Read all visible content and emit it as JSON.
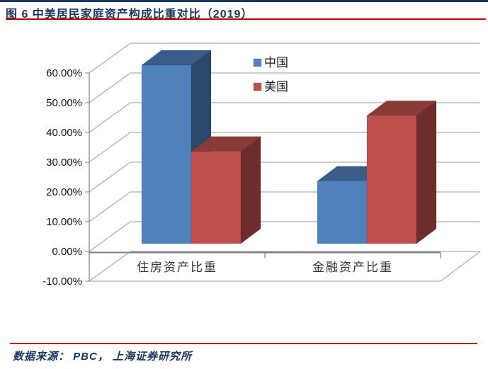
{
  "header": {
    "title": "图 6 中美居民家庭资产构成比重对比（2019）",
    "accent_color": "#17365D",
    "rule_color": "#C00000"
  },
  "footer": {
    "source": "数据来源： PBC， 上海证券研究所"
  },
  "chart_data": {
    "type": "bar",
    "variant": "3d-clustered-column",
    "title": "中美居民家庭资产构成比重对比（2019）",
    "categories": [
      "住房资产比重",
      "金融资产比重"
    ],
    "category_keys": [
      "housing",
      "financial"
    ],
    "series": [
      {
        "name": "中国",
        "key": "china",
        "color": "#4F81BD",
        "values": [
          60,
          21
        ]
      },
      {
        "name": "美国",
        "key": "usa",
        "color": "#C0504D",
        "values": [
          31,
          43
        ]
      }
    ],
    "unit": "%",
    "ylim": [
      -10,
      60
    ],
    "ytick_step": 10,
    "ytick_labels": [
      "60.00%",
      "50.00%",
      "40.00%",
      "30.00%",
      "20.00%",
      "10.00%",
      "0.00%",
      "-10.00%"
    ],
    "grid": true,
    "gridline_color": "#999999",
    "axis_color": "#7f7f7f",
    "legend": {
      "position": "inside-top-right",
      "entries": [
        "中国",
        "美国"
      ]
    }
  }
}
